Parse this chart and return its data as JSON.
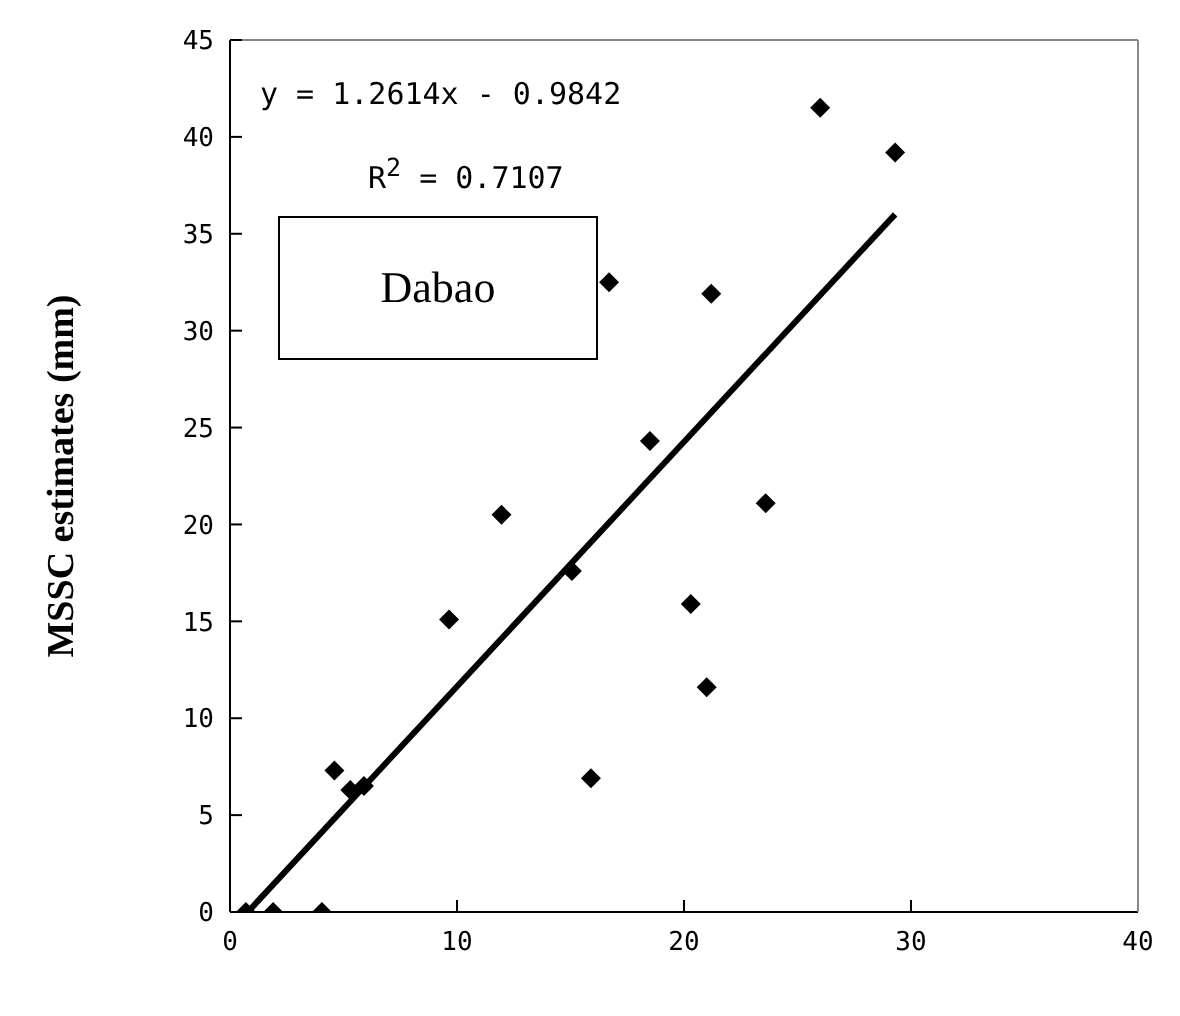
{
  "chart_data": {
    "type": "scatter",
    "ylabel": "MSSC estimates (mm)",
    "annotations": [
      "y = 1.2614x - 0.9842",
      "R$^{2}$ = 0.7107",
      "Dabao"
    ],
    "xlim": [
      0,
      40
    ],
    "xticks": [
      0,
      10,
      20,
      30,
      40
    ],
    "ylim": [
      0,
      45
    ],
    "yticks": [
      0,
      5,
      10,
      15,
      20,
      25,
      30,
      35,
      40,
      45
    ],
    "grid": false,
    "legend": false,
    "marker": "diamond",
    "series": [
      {
        "color": "#000000",
        "x": [
          0.7,
          1.9,
          4.05,
          4.6,
          5.3,
          5.9,
          9.65,
          11.96,
          15.06,
          15.9,
          20.3,
          21.0,
          23.6,
          26.0,
          29.3,
          16.7,
          21.2,
          18.5
        ],
        "values": [
          0,
          0,
          0,
          7.3,
          6.3,
          6.5,
          15.1,
          20.5,
          17.6,
          6.9,
          15.9,
          11.6,
          21.1,
          41.5,
          39.2,
          32.5,
          31.9,
          24.3
        ]
      },
      {
        "type": "line",
        "color": "#000000",
        "marker": "none",
        "line_style": "solid",
        "x": [
          0.78,
          29.3
        ],
        "values": [
          0,
          36.0
        ]
      }
    ]
  }
}
